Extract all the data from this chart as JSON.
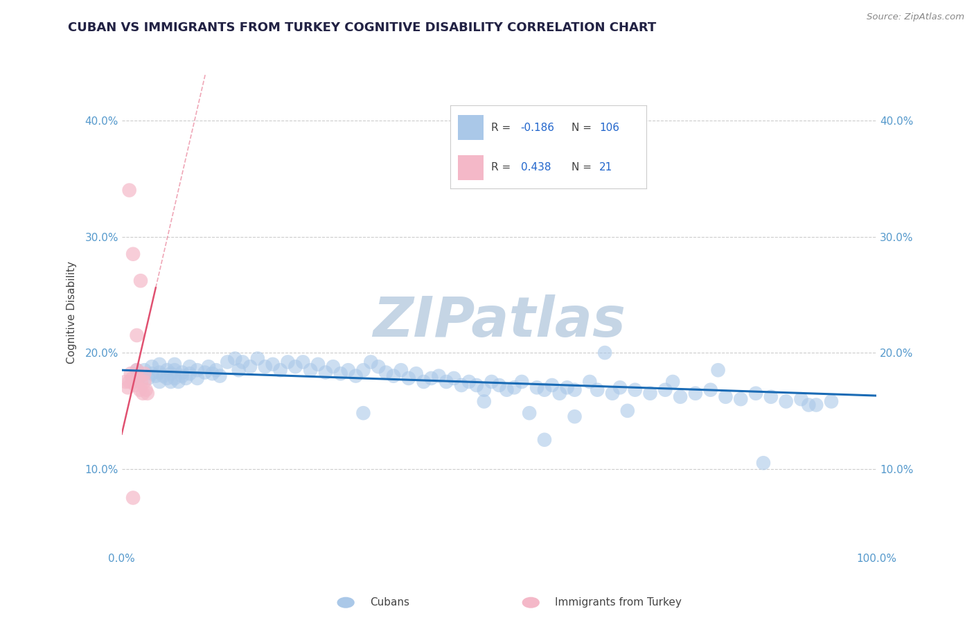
{
  "title": "CUBAN VS IMMIGRANTS FROM TURKEY COGNITIVE DISABILITY CORRELATION CHART",
  "source": "Source: ZipAtlas.com",
  "xlabel_cubans": "Cubans",
  "xlabel_turkey": "Immigrants from Turkey",
  "ylabel": "Cognitive Disability",
  "xlim": [
    0.0,
    1.0
  ],
  "ylim": [
    0.03,
    0.44
  ],
  "y_ticks": [
    0.1,
    0.2,
    0.3,
    0.4
  ],
  "y_tick_labels": [
    "10.0%",
    "20.0%",
    "30.0%",
    "40.0%"
  ],
  "cuban_color": "#aac8e8",
  "turkey_color": "#f4b8c8",
  "cuban_line_color": "#1a6bb5",
  "turkey_line_color": "#e05070",
  "r_cuban": -0.186,
  "n_cuban": 106,
  "r_turkey": 0.438,
  "n_turkey": 21,
  "legend_label_color": "#333333",
  "legend_value_color": "#2266cc",
  "watermark": "ZIPatlas",
  "watermark_color": "#c5d5e5",
  "title_color": "#222244",
  "source_color": "#888888",
  "tick_color": "#5599cc",
  "cuban_points_x": [
    0.02,
    0.025,
    0.03,
    0.035,
    0.04,
    0.04,
    0.045,
    0.05,
    0.05,
    0.05,
    0.055,
    0.06,
    0.06,
    0.065,
    0.065,
    0.07,
    0.07,
    0.07,
    0.075,
    0.08,
    0.08,
    0.085,
    0.09,
    0.09,
    0.1,
    0.1,
    0.11,
    0.115,
    0.12,
    0.125,
    0.13,
    0.14,
    0.15,
    0.155,
    0.16,
    0.17,
    0.18,
    0.19,
    0.2,
    0.21,
    0.22,
    0.23,
    0.24,
    0.25,
    0.26,
    0.27,
    0.28,
    0.29,
    0.3,
    0.31,
    0.32,
    0.33,
    0.34,
    0.35,
    0.36,
    0.37,
    0.38,
    0.39,
    0.4,
    0.41,
    0.42,
    0.43,
    0.44,
    0.45,
    0.46,
    0.47,
    0.48,
    0.49,
    0.5,
    0.51,
    0.52,
    0.53,
    0.55,
    0.56,
    0.57,
    0.58,
    0.59,
    0.6,
    0.62,
    0.63,
    0.64,
    0.65,
    0.66,
    0.68,
    0.7,
    0.72,
    0.74,
    0.76,
    0.78,
    0.8,
    0.82,
    0.84,
    0.86,
    0.88,
    0.9,
    0.92,
    0.94,
    0.56,
    0.6,
    0.67,
    0.73,
    0.79,
    0.85,
    0.91,
    0.54,
    0.48,
    0.32
  ],
  "cuban_points_y": [
    0.185,
    0.18,
    0.185,
    0.178,
    0.182,
    0.188,
    0.18,
    0.175,
    0.183,
    0.19,
    0.18,
    0.178,
    0.185,
    0.175,
    0.182,
    0.178,
    0.185,
    0.19,
    0.175,
    0.18,
    0.183,
    0.178,
    0.182,
    0.188,
    0.178,
    0.185,
    0.183,
    0.188,
    0.182,
    0.185,
    0.18,
    0.192,
    0.195,
    0.185,
    0.192,
    0.188,
    0.195,
    0.188,
    0.19,
    0.185,
    0.192,
    0.188,
    0.192,
    0.185,
    0.19,
    0.183,
    0.188,
    0.182,
    0.185,
    0.18,
    0.185,
    0.192,
    0.188,
    0.183,
    0.18,
    0.185,
    0.178,
    0.182,
    0.175,
    0.178,
    0.18,
    0.175,
    0.178,
    0.172,
    0.175,
    0.172,
    0.168,
    0.175,
    0.172,
    0.168,
    0.17,
    0.175,
    0.17,
    0.168,
    0.172,
    0.165,
    0.17,
    0.168,
    0.175,
    0.168,
    0.2,
    0.165,
    0.17,
    0.168,
    0.165,
    0.168,
    0.162,
    0.165,
    0.168,
    0.162,
    0.16,
    0.165,
    0.162,
    0.158,
    0.16,
    0.155,
    0.158,
    0.125,
    0.145,
    0.15,
    0.175,
    0.185,
    0.105,
    0.155,
    0.148,
    0.158,
    0.148
  ],
  "turkey_points_x": [
    0.005,
    0.008,
    0.01,
    0.012,
    0.014,
    0.016,
    0.018,
    0.02,
    0.022,
    0.024,
    0.026,
    0.028,
    0.03,
    0.032,
    0.034,
    0.01,
    0.015,
    0.02,
    0.025,
    0.03,
    0.015
  ],
  "turkey_points_y": [
    0.175,
    0.17,
    0.175,
    0.182,
    0.178,
    0.175,
    0.172,
    0.185,
    0.178,
    0.168,
    0.175,
    0.165,
    0.175,
    0.168,
    0.165,
    0.34,
    0.285,
    0.215,
    0.262,
    0.182,
    0.075
  ]
}
